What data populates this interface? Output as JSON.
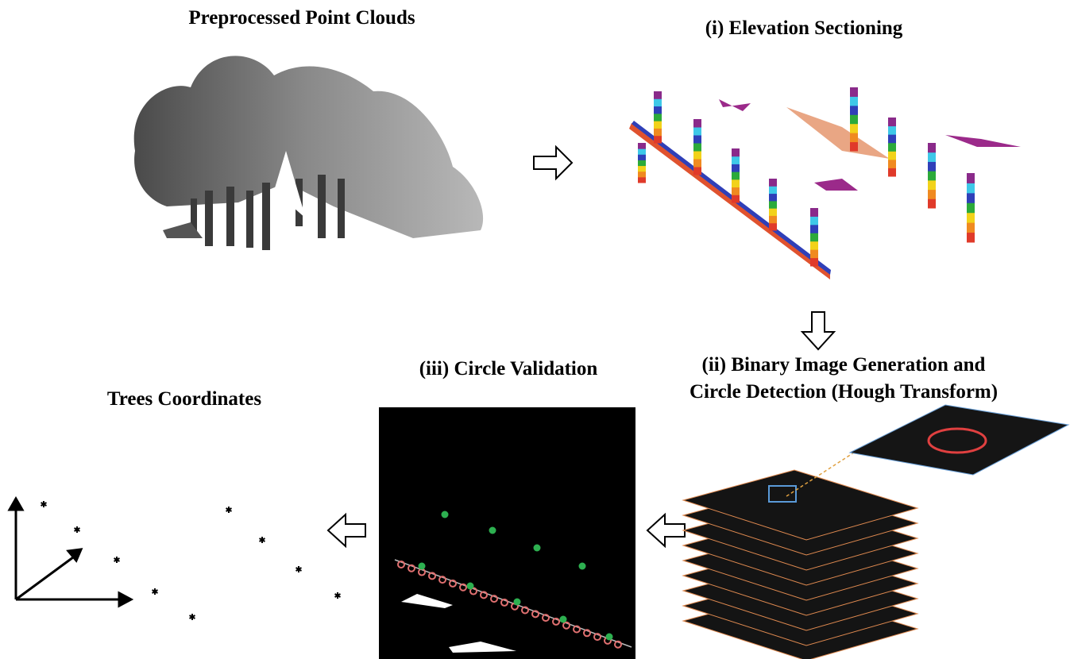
{
  "panels": [
    {
      "title": "Preprocessed Point Clouds"
    },
    {
      "title": "(i) Elevation Sectioning"
    },
    {
      "title_lines": [
        "(ii) Binary Image Generation and",
        "Circle Detection (Hough Transform)"
      ]
    },
    {
      "title": "(iii) Circle Validation"
    },
    {
      "title": "Trees Coordinates"
    }
  ]
}
